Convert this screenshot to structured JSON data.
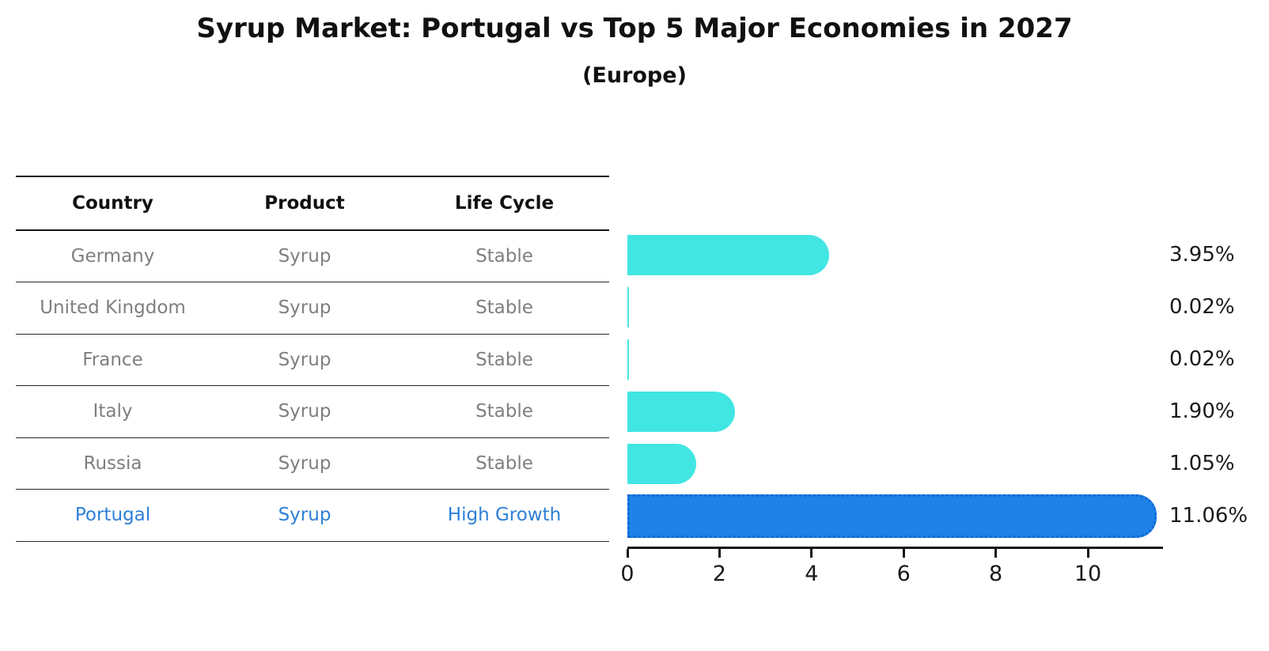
{
  "title": "Syrup Market: Portugal vs Top 5 Major Economies in 2027",
  "subtitle": "(Europe)",
  "table": {
    "headers": [
      "Country",
      "Product",
      "Life Cycle"
    ],
    "rows": [
      {
        "country": "Germany",
        "product": "Syrup",
        "life_cycle": "Stable",
        "highlight": false
      },
      {
        "country": "United Kingdom",
        "product": "Syrup",
        "life_cycle": "Stable",
        "highlight": false
      },
      {
        "country": "France",
        "product": "Syrup",
        "life_cycle": "Stable",
        "highlight": false
      },
      {
        "country": "Italy",
        "product": "Syrup",
        "life_cycle": "Stable",
        "highlight": false
      },
      {
        "country": "Russia",
        "product": "Syrup",
        "life_cycle": "Stable",
        "highlight": false
      },
      {
        "country": "Portugal",
        "product": "Syrup",
        "life_cycle": "High Growth",
        "highlight": true
      }
    ]
  },
  "chart_data": {
    "type": "bar",
    "orientation": "horizontal",
    "title": "Syrup Market: Portugal vs Top 5 Major Economies in 2027",
    "subtitle": "(Europe)",
    "categories": [
      "Germany",
      "United Kingdom",
      "France",
      "Italy",
      "Russia",
      "Portugal"
    ],
    "values": [
      3.95,
      0.02,
      0.02,
      1.9,
      1.05,
      11.06
    ],
    "value_labels": [
      "3.95%",
      "0.02%",
      "0.02%",
      "1.90%",
      "1.05%",
      "11.06%"
    ],
    "x_ticks": [
      "0",
      "2",
      "4",
      "6",
      "8",
      "10"
    ],
    "xlim": [
      0,
      11.63
    ],
    "grid": false,
    "legend": "none",
    "bar_color": "#41E6E2",
    "highlight_bar_color": "#1E82E8",
    "highlight_border_color": "#1068D4",
    "highlight_text_color": "#2E7FD6",
    "row_text_color": "#7f7f7f",
    "highlight_index": 5
  }
}
